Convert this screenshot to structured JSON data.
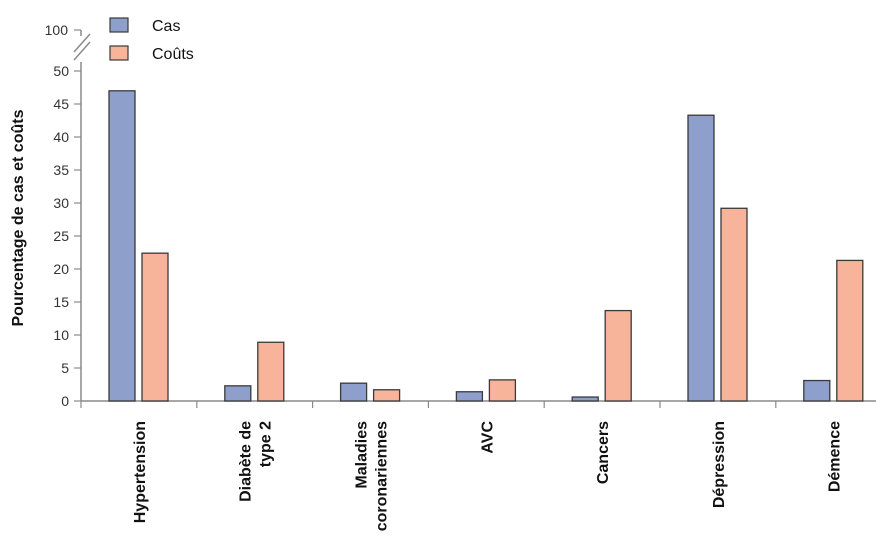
{
  "chart_data": {
    "type": "bar",
    "title": "",
    "xlabel": "",
    "ylabel": "Pourcentage de cas et coûts",
    "ylim": [
      0,
      50
    ],
    "y_break_top_tick": 100,
    "yticks": [
      0,
      5,
      10,
      15,
      20,
      25,
      30,
      35,
      40,
      45,
      50
    ],
    "categories": [
      [
        "Hypertension"
      ],
      [
        "Diabète de",
        "type 2"
      ],
      [
        "Maladies",
        "coronariennes"
      ],
      [
        "AVC"
      ],
      [
        "Cancers"
      ],
      [
        "Dépression"
      ],
      [
        "Démence"
      ]
    ],
    "series": [
      {
        "name": "Cas",
        "color": "#8f9fcc",
        "values": [
          47,
          2.3,
          2.7,
          1.4,
          0.6,
          43.3,
          3.1
        ]
      },
      {
        "name": "Coûts",
        "color": "#f7b49a",
        "values": [
          22.4,
          8.9,
          1.7,
          3.2,
          13.7,
          29.2,
          21.3
        ]
      }
    ],
    "legend_position": "top-left",
    "grid": false
  }
}
